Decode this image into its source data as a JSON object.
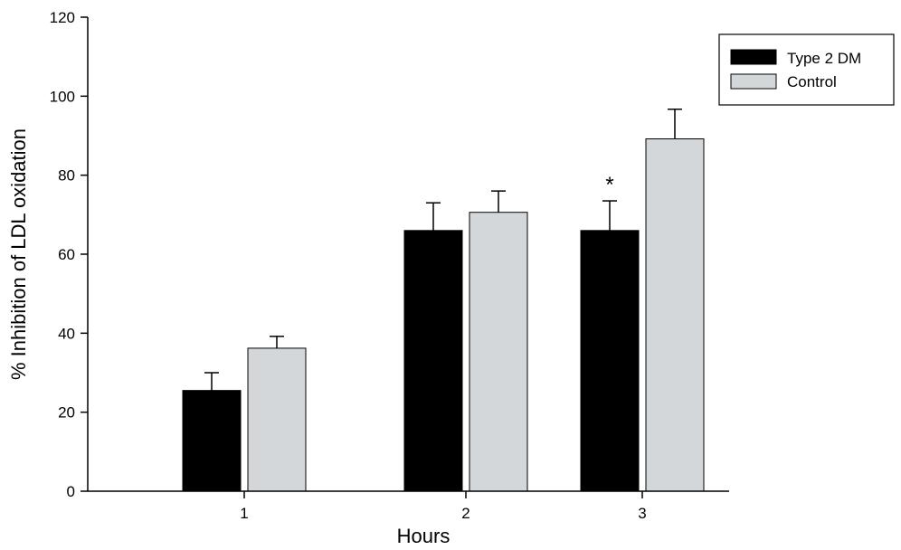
{
  "chart_data": {
    "type": "bar",
    "title": "",
    "xlabel": "Hours",
    "ylabel": "% Inhibition of LDL oxidation",
    "categories": [
      "1",
      "2",
      "3"
    ],
    "ylim": [
      0,
      120
    ],
    "yticks": [
      "0",
      "20",
      "40",
      "60",
      "80",
      "100",
      "120"
    ],
    "grid": false,
    "legend_position": "top-right",
    "series": [
      {
        "name": "Type 2 DM",
        "color": "#000000",
        "values": [
          25.5,
          66,
          66
        ],
        "errors": [
          4.5,
          7,
          7.5
        ]
      },
      {
        "name": "Control",
        "color": "#d3d7d9",
        "values": [
          36.2,
          70.6,
          89.2
        ],
        "errors": [
          3,
          5.4,
          7.5
        ]
      }
    ],
    "annotations": [
      {
        "text": "*",
        "category": "3",
        "series": "Type 2 DM"
      }
    ]
  }
}
